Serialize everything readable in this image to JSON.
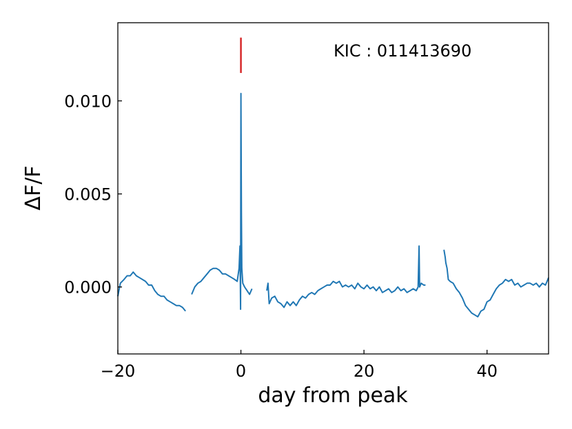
{
  "chart_data": {
    "type": "line",
    "title": "",
    "xlabel": "day from peak",
    "ylabel": "ΔF/F",
    "annotation": "KIC : 011413690",
    "xlim": [
      -20,
      50
    ],
    "ylim": [
      -0.0036,
      0.0142
    ],
    "x_ticks": [
      -20,
      0,
      20,
      40
    ],
    "x_tick_labels": [
      "−20",
      "0",
      "20",
      "40"
    ],
    "y_ticks": [
      0.0,
      0.005,
      0.01
    ],
    "y_tick_labels": [
      "0.000",
      "0.005",
      "0.010"
    ],
    "grid": false,
    "legend": "none",
    "colors": {
      "series": "#1f77b4",
      "peak_marker": "#d62728"
    },
    "peak_marker": {
      "x": 0.0,
      "y_start": 0.0115,
      "y_end": 0.0134
    },
    "series": [
      {
        "values": [
          [
            -20.0,
            -0.0005
          ],
          [
            -19.6,
            0.0002
          ],
          [
            -19.0,
            0.0004
          ],
          [
            -18.5,
            0.0006
          ],
          [
            -18.0,
            0.0006
          ],
          [
            -17.5,
            0.0008
          ],
          [
            -17.0,
            0.0006
          ],
          [
            -16.5,
            0.0005
          ],
          [
            -16.0,
            0.0004
          ],
          [
            -15.5,
            0.0003
          ],
          [
            -15.0,
            0.0001
          ],
          [
            -14.5,
            0.0001
          ],
          [
            -14.0,
            -0.0002
          ],
          [
            -13.5,
            -0.0004
          ],
          [
            -13.0,
            -0.0005
          ],
          [
            -12.5,
            -0.0005
          ],
          [
            -12.0,
            -0.0007
          ],
          [
            -11.5,
            -0.0008
          ],
          [
            -11.0,
            -0.0009
          ],
          [
            -10.5,
            -0.001
          ],
          [
            -10.0,
            -0.001
          ],
          [
            -9.5,
            -0.0011
          ],
          [
            -9.0,
            -0.0013
          ]
        ]
      },
      {
        "values": [
          [
            -8.0,
            -0.0004
          ],
          [
            -7.5,
            0.0
          ],
          [
            -7.0,
            0.0002
          ],
          [
            -6.5,
            0.0003
          ],
          [
            -6.0,
            0.0005
          ],
          [
            -5.5,
            0.0007
          ],
          [
            -5.0,
            0.0009
          ],
          [
            -4.5,
            0.001
          ],
          [
            -4.0,
            0.001
          ],
          [
            -3.5,
            0.0009
          ],
          [
            -3.0,
            0.0007
          ],
          [
            -2.5,
            0.0007
          ],
          [
            -2.0,
            0.0006
          ],
          [
            -1.5,
            0.0005
          ],
          [
            -1.0,
            0.0004
          ],
          [
            -0.6,
            0.0003
          ],
          [
            -0.3,
            0.001
          ],
          [
            -0.15,
            0.0022
          ],
          [
            -0.05,
            -0.0012
          ],
          [
            0.0,
            0.0104
          ],
          [
            0.08,
            0.004
          ],
          [
            0.15,
            0.001
          ],
          [
            0.3,
            0.0002
          ],
          [
            0.6,
            0.0
          ],
          [
            1.0,
            -0.0002
          ],
          [
            1.4,
            -0.0004
          ],
          [
            1.8,
            -0.0001
          ]
        ]
      },
      {
        "values": [
          [
            4.2,
            -0.0002
          ],
          [
            4.4,
            0.0002
          ],
          [
            4.6,
            -0.0009
          ],
          [
            5.0,
            -0.0006
          ],
          [
            5.5,
            -0.0005
          ],
          [
            6.0,
            -0.0008
          ],
          [
            6.5,
            -0.0009
          ],
          [
            7.0,
            -0.0011
          ],
          [
            7.5,
            -0.0008
          ],
          [
            8.0,
            -0.001
          ],
          [
            8.5,
            -0.0008
          ],
          [
            9.0,
            -0.001
          ],
          [
            9.5,
            -0.0007
          ],
          [
            10.0,
            -0.0005
          ],
          [
            10.5,
            -0.0006
          ],
          [
            11.0,
            -0.0004
          ],
          [
            11.5,
            -0.0003
          ],
          [
            12.0,
            -0.0004
          ],
          [
            12.5,
            -0.0002
          ],
          [
            13.0,
            -0.0001
          ],
          [
            13.5,
            0.0
          ],
          [
            14.0,
            0.0001
          ],
          [
            14.5,
            0.0001
          ],
          [
            15.0,
            0.0003
          ],
          [
            15.5,
            0.0002
          ],
          [
            16.0,
            0.0003
          ],
          [
            16.5,
            0.0
          ],
          [
            17.0,
            0.0001
          ],
          [
            17.5,
            0.0
          ],
          [
            18.0,
            0.0001
          ],
          [
            18.5,
            -0.0001
          ],
          [
            19.0,
            0.0002
          ],
          [
            19.5,
            0.0
          ],
          [
            20.0,
            -0.0001
          ],
          [
            20.5,
            0.0001
          ],
          [
            21.0,
            -0.0001
          ],
          [
            21.5,
            0.0
          ],
          [
            22.0,
            -0.0002
          ],
          [
            22.5,
            0.0
          ],
          [
            23.0,
            -0.0003
          ],
          [
            23.5,
            -0.0002
          ],
          [
            24.0,
            -0.0001
          ],
          [
            24.5,
            -0.0003
          ],
          [
            25.0,
            -0.0002
          ],
          [
            25.5,
            0.0
          ],
          [
            26.0,
            -0.0002
          ],
          [
            26.5,
            -0.0001
          ],
          [
            27.0,
            -0.0003
          ],
          [
            27.5,
            -0.0002
          ],
          [
            28.0,
            -0.0001
          ],
          [
            28.5,
            -0.0002
          ],
          [
            28.8,
            0.0
          ],
          [
            28.95,
            0.0022
          ],
          [
            29.05,
            0.0
          ],
          [
            29.3,
            0.0002
          ],
          [
            29.7,
            0.0001
          ],
          [
            30.0,
            0.0001
          ]
        ]
      },
      {
        "values": [
          [
            33.0,
            0.002
          ],
          [
            33.2,
            0.0016
          ],
          [
            33.3,
            0.0013
          ],
          [
            33.5,
            0.001
          ],
          [
            33.7,
            0.0004
          ],
          [
            34.0,
            0.0003
          ],
          [
            34.5,
            0.0002
          ],
          [
            35.0,
            -0.0001
          ],
          [
            35.5,
            -0.0003
          ],
          [
            36.0,
            -0.0006
          ],
          [
            36.5,
            -0.001
          ],
          [
            37.0,
            -0.0012
          ],
          [
            37.5,
            -0.0014
          ],
          [
            38.0,
            -0.0015
          ],
          [
            38.5,
            -0.0016
          ],
          [
            39.0,
            -0.0013
          ],
          [
            39.5,
            -0.0012
          ],
          [
            40.0,
            -0.0008
          ],
          [
            40.5,
            -0.0007
          ],
          [
            41.0,
            -0.0004
          ],
          [
            41.5,
            -0.0001
          ],
          [
            42.0,
            0.0001
          ],
          [
            42.5,
            0.0002
          ],
          [
            43.0,
            0.0004
          ],
          [
            43.5,
            0.0003
          ],
          [
            44.0,
            0.0004
          ],
          [
            44.5,
            0.0001
          ],
          [
            45.0,
            0.0002
          ],
          [
            45.5,
            0.0
          ],
          [
            46.0,
            0.0001
          ],
          [
            46.5,
            0.0002
          ],
          [
            47.0,
            0.0002
          ],
          [
            47.5,
            0.0001
          ],
          [
            48.0,
            0.0002
          ],
          [
            48.5,
            0.0
          ],
          [
            49.0,
            0.0002
          ],
          [
            49.5,
            0.0001
          ],
          [
            50.0,
            0.0005
          ]
        ]
      }
    ]
  }
}
